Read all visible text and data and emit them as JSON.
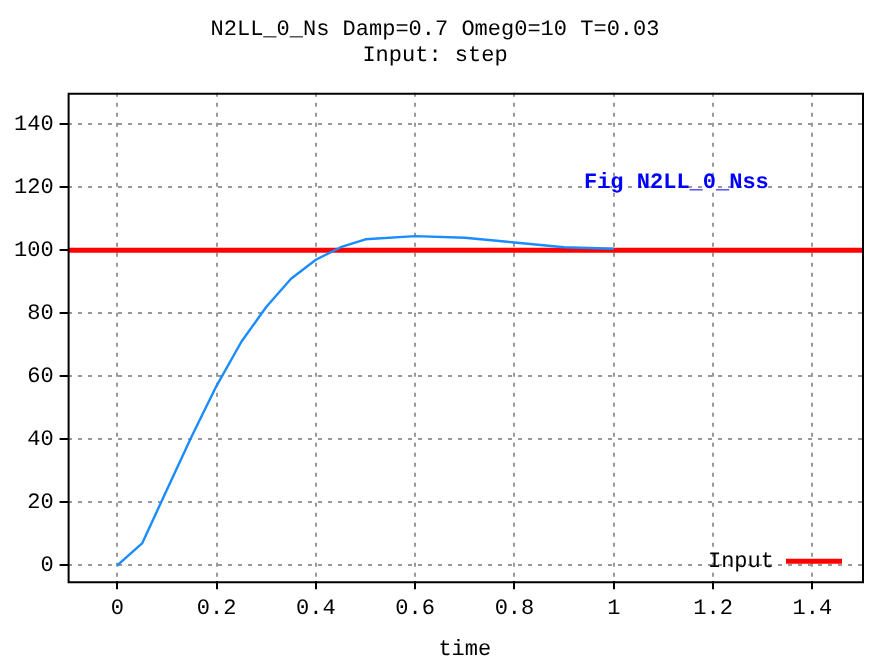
{
  "chart_data": {
    "type": "line",
    "title": "N2LL_0_Ns Damp=0.7 Omeg0=10 T=0.03",
    "subtitle": "Input: step",
    "xlabel": "time",
    "xlim": [
      -0.1,
      1.5
    ],
    "ylim": [
      -5,
      150
    ],
    "xticks": [
      0,
      {
        "value": 0.2,
        "label": "0.2"
      },
      {
        "value": 0.4,
        "label": "0.4"
      },
      {
        "value": 0.6,
        "label": "0.6"
      },
      {
        "value": 0.8,
        "label": "0.8"
      },
      1,
      {
        "value": 1.2,
        "label": "1.2"
      },
      {
        "value": 1.4,
        "label": "1.4"
      }
    ],
    "yticks": [
      0,
      20,
      40,
      60,
      80,
      100,
      120,
      140
    ],
    "grid": true,
    "legend": "bottom right",
    "line_style": "solid",
    "marker": "none",
    "annotations": [
      "Fig N2LL_0_Nss"
    ],
    "series": [
      {
        "color": "#1a8cff",
        "x": [
          0,
          0.05,
          0.1,
          0.15,
          0.2,
          0.25,
          0.3,
          0.35,
          0.4,
          0.45,
          0.5,
          0.6,
          0.7,
          0.8,
          0.9,
          1
        ],
        "values": [
          0,
          7,
          24,
          41,
          57,
          71,
          82,
          91,
          97,
          101,
          103.5,
          104.5,
          104,
          102.5,
          101,
          100.5
        ]
      },
      {
        "name": "Input",
        "color": "#ff0000",
        "x": [
          -0.1,
          1.5
        ],
        "values": [
          100,
          100
        ]
      }
    ]
  }
}
